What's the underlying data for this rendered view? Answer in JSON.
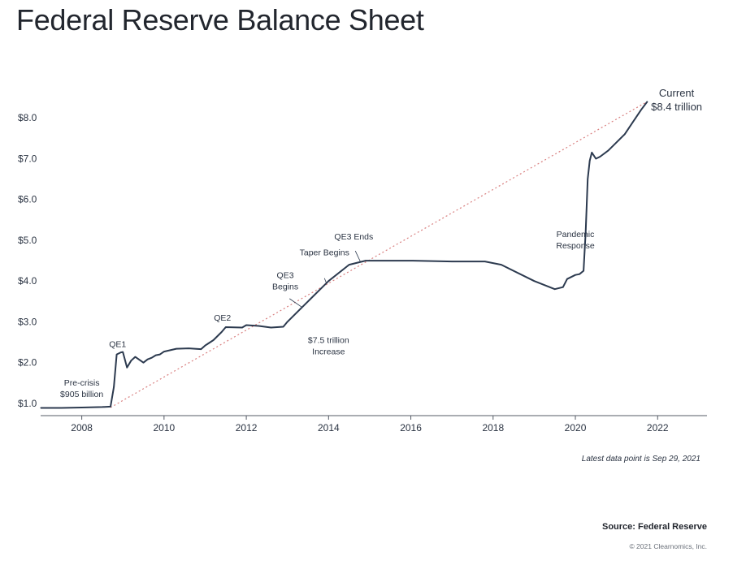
{
  "title": "Federal Reserve Balance Sheet",
  "note": "Latest data point is Sep 29, 2021",
  "source": "Source: Federal Reserve",
  "copyright": "© 2021 Clearnomics, Inc.",
  "colors": {
    "line": "#2c3a4f",
    "trend": "#d98080",
    "axis": "#555b66"
  },
  "chart_data": {
    "type": "line",
    "title": "Federal Reserve Balance Sheet",
    "xlabel": "",
    "ylabel": "",
    "xlim": [
      2007.0,
      2023.2
    ],
    "ylim": [
      0.7,
      8.9
    ],
    "x_ticks": [
      2008,
      2010,
      2012,
      2014,
      2016,
      2018,
      2020,
      2022
    ],
    "x_tick_labels": [
      "2008",
      "2010",
      "2012",
      "2014",
      "2016",
      "2018",
      "2020",
      "2022"
    ],
    "y_ticks": [
      1,
      2,
      3,
      4,
      5,
      6,
      7,
      8
    ],
    "y_tick_labels": [
      "$1.0",
      "$2.0",
      "$3.0",
      "$4.0",
      "$5.0",
      "$6.0",
      "$7.0",
      "$8.0"
    ],
    "grid": false,
    "series": [
      {
        "x": [
          2007.0,
          2007.5,
          2008.0,
          2008.5,
          2008.7,
          2008.78,
          2008.85,
          2008.95,
          2009.0,
          2009.1,
          2009.2,
          2009.3,
          2009.4,
          2009.5,
          2009.6,
          2009.7,
          2009.8,
          2009.9,
          2010.0,
          2010.3,
          2010.6,
          2010.9,
          2011.0,
          2011.2,
          2011.4,
          2011.5,
          2011.9,
          2012.0,
          2012.3,
          2012.6,
          2012.9,
          2013.0,
          2013.5,
          2014.0,
          2014.5,
          2014.9,
          2015.5,
          2016.0,
          2017.0,
          2017.8,
          2018.2,
          2019.0,
          2019.5,
          2019.7,
          2019.8,
          2020.0,
          2020.1,
          2020.2,
          2020.25,
          2020.3,
          2020.35,
          2020.4,
          2020.5,
          2020.6,
          2020.8,
          2021.0,
          2021.2,
          2021.4,
          2021.6,
          2021.75
        ],
        "values": [
          0.89,
          0.89,
          0.9,
          0.91,
          0.92,
          1.4,
          2.2,
          2.25,
          2.26,
          1.88,
          2.05,
          2.14,
          2.07,
          2.0,
          2.08,
          2.12,
          2.18,
          2.2,
          2.27,
          2.34,
          2.35,
          2.33,
          2.42,
          2.55,
          2.75,
          2.87,
          2.86,
          2.92,
          2.9,
          2.86,
          2.88,
          3.0,
          3.5,
          4.0,
          4.4,
          4.5,
          4.5,
          4.5,
          4.48,
          4.48,
          4.4,
          4.0,
          3.8,
          3.85,
          4.05,
          4.15,
          4.17,
          4.25,
          5.2,
          6.5,
          6.95,
          7.15,
          7.0,
          7.05,
          7.2,
          7.4,
          7.6,
          7.9,
          8.2,
          8.4
        ]
      }
    ],
    "trend_line": {
      "x": [
        2008.7,
        2021.75
      ],
      "values": [
        0.9,
        8.4
      ]
    },
    "annotations": [
      {
        "text": [
          "Pre-crisis",
          "$905 billion"
        ],
        "x": 2008.0,
        "y": 1.0
      },
      {
        "text": [
          "QE1"
        ],
        "x": 2008.95,
        "y": 2.26
      },
      {
        "text": [
          "QE2"
        ],
        "x": 2011.5,
        "y": 2.87
      },
      {
        "text": [
          "QE3",
          "Begins"
        ],
        "x": 2012.75,
        "y": 3.0
      },
      {
        "text": [
          "Taper Begins"
        ],
        "x": 2013.9,
        "y": 3.95
      },
      {
        "text": [
          "QE3 Ends"
        ],
        "x": 2014.85,
        "y": 4.5
      },
      {
        "text": [
          "$7.5 trillion",
          "Increase"
        ],
        "x": 2014.0,
        "y": 2.4
      },
      {
        "text": [
          "Pandemic",
          "Response"
        ],
        "x": 2020.0,
        "y": 4.8
      }
    ],
    "current_label": [
      "Current",
      "$8.4 trillion"
    ]
  }
}
